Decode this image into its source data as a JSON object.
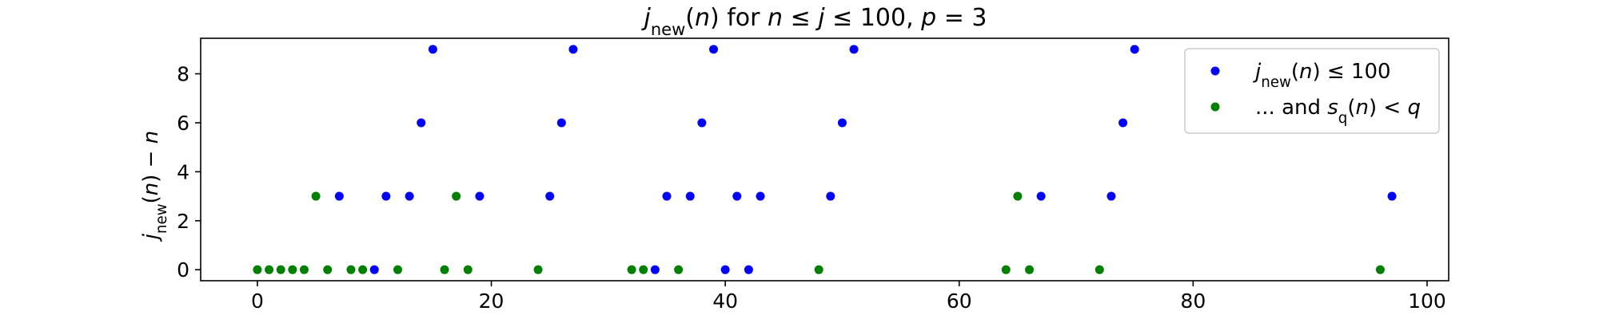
{
  "chart_data": {
    "type": "scatter",
    "title": "j_new(n) for n ≤ j ≤ 100, p = 3",
    "xlabel": "",
    "ylabel": "j_new(n) − n",
    "xlim": [
      -4.85,
      101.85
    ],
    "ylim": [
      -0.45,
      9.45
    ],
    "x_ticks": [
      0,
      20,
      40,
      60,
      80,
      100
    ],
    "y_ticks": [
      0,
      2,
      4,
      6,
      8
    ],
    "grid": false,
    "legend_position": "top-right",
    "series": [
      {
        "name": "j_new(n) ≤ 100",
        "color": "#0000ff",
        "points": [
          [
            7,
            3
          ],
          [
            10,
            0
          ],
          [
            11,
            3
          ],
          [
            13,
            3
          ],
          [
            14,
            6
          ],
          [
            15,
            9
          ],
          [
            19,
            3
          ],
          [
            25,
            3
          ],
          [
            26,
            6
          ],
          [
            27,
            9
          ],
          [
            34,
            0
          ],
          [
            35,
            3
          ],
          [
            37,
            3
          ],
          [
            38,
            6
          ],
          [
            39,
            9
          ],
          [
            40,
            0
          ],
          [
            41,
            3
          ],
          [
            42,
            0
          ],
          [
            43,
            3
          ],
          [
            49,
            3
          ],
          [
            50,
            6
          ],
          [
            51,
            9
          ],
          [
            67,
            3
          ],
          [
            73,
            3
          ],
          [
            74,
            6
          ],
          [
            75,
            9
          ],
          [
            97,
            3
          ]
        ]
      },
      {
        "name": "... and s_q(n) < q",
        "color": "#008000",
        "points": [
          [
            0,
            0
          ],
          [
            1,
            0
          ],
          [
            2,
            0
          ],
          [
            3,
            0
          ],
          [
            4,
            0
          ],
          [
            5,
            3
          ],
          [
            6,
            0
          ],
          [
            8,
            0
          ],
          [
            9,
            0
          ],
          [
            12,
            0
          ],
          [
            16,
            0
          ],
          [
            17,
            3
          ],
          [
            18,
            0
          ],
          [
            24,
            0
          ],
          [
            32,
            0
          ],
          [
            33,
            0
          ],
          [
            36,
            0
          ],
          [
            48,
            0
          ],
          [
            64,
            0
          ],
          [
            65,
            3
          ],
          [
            66,
            0
          ],
          [
            72,
            0
          ],
          [
            96,
            0
          ]
        ]
      }
    ]
  }
}
